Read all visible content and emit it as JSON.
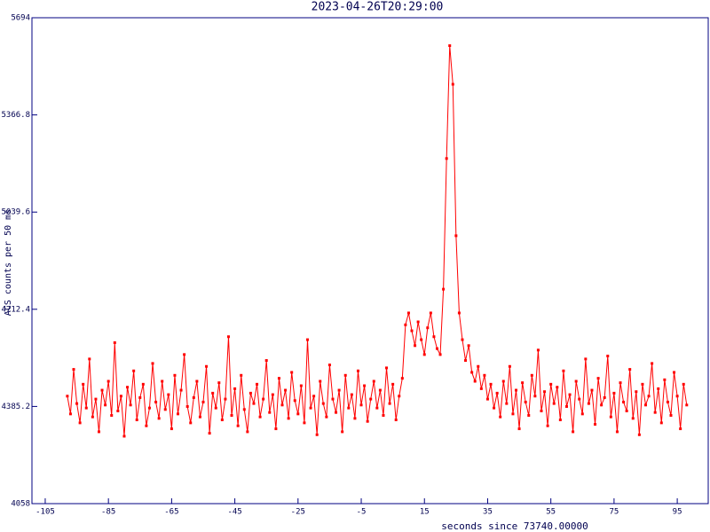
{
  "chart_data": {
    "type": "line",
    "title": "2023-04-26T20:29:00",
    "xlabel": "seconds since 73740.00000",
    "ylabel": "ACS counts per 50 ms",
    "x": [
      -98,
      -97,
      -96,
      -95,
      -94,
      -93,
      -92,
      -91,
      -90,
      -89,
      -88,
      -87,
      -86,
      -85,
      -84,
      -83,
      -82,
      -81,
      -80,
      -79,
      -78,
      -77,
      -76,
      -75,
      -74,
      -73,
      -72,
      -71,
      -70,
      -69,
      -68,
      -67,
      -66,
      -65,
      -64,
      -63,
      -62,
      -61,
      -60,
      -59,
      -58,
      -57,
      -56,
      -55,
      -54,
      -53,
      -52,
      -51,
      -50,
      -49,
      -48,
      -47,
      -46,
      -45,
      -44,
      -43,
      -42,
      -41,
      -40,
      -39,
      -38,
      -37,
      -36,
      -35,
      -34,
      -33,
      -32,
      -31,
      -30,
      -29,
      -28,
      -27,
      -26,
      -25,
      -24,
      -23,
      -22,
      -21,
      -20,
      -19,
      -18,
      -17,
      -16,
      -15,
      -14,
      -13,
      -12,
      -11,
      -10,
      -9,
      -8,
      -7,
      -6,
      -5,
      -4,
      -3,
      -2,
      -1,
      0,
      1,
      2,
      3,
      4,
      5,
      6,
      7,
      8,
      9,
      10,
      11,
      12,
      13,
      14,
      15,
      16,
      17,
      18,
      19,
      20,
      21,
      22,
      23,
      24,
      25,
      26,
      27,
      28,
      29,
      30,
      31,
      32,
      33,
      34,
      35,
      36,
      37,
      38,
      39,
      40,
      41,
      42,
      43,
      44,
      45,
      46,
      47,
      48,
      49,
      50,
      51,
      52,
      53,
      54,
      55,
      56,
      57,
      58,
      59,
      60,
      61,
      62,
      63,
      64,
      65,
      66,
      67,
      68,
      69,
      70,
      71,
      72,
      73,
      74,
      75,
      76,
      77,
      78,
      79,
      80,
      81,
      82,
      83,
      84,
      85,
      86,
      87,
      88,
      89,
      90,
      91,
      92,
      93,
      94,
      95,
      96,
      97,
      98
    ],
    "series": [
      {
        "color": "#ff0000",
        "values": [
          4420,
          4360,
          4510,
          4395,
          4330,
          4460,
          4380,
          4545,
          4350,
          4410,
          4300,
          4440,
          4390,
          4470,
          4355,
          4600,
          4370,
          4420,
          4285,
          4450,
          4390,
          4505,
          4340,
          4415,
          4460,
          4320,
          4380,
          4530,
          4400,
          4345,
          4470,
          4375,
          4425,
          4310,
          4490,
          4360,
          4440,
          4560,
          4385,
          4330,
          4415,
          4470,
          4350,
          4400,
          4520,
          4295,
          4430,
          4380,
          4465,
          4340,
          4410,
          4620,
          4355,
          4445,
          4320,
          4490,
          4375,
          4300,
          4430,
          4395,
          4460,
          4350,
          4410,
          4540,
          4365,
          4425,
          4310,
          4480,
          4390,
          4440,
          4345,
          4500,
          4405,
          4360,
          4455,
          4330,
          4610,
          4380,
          4420,
          4290,
          4470,
          4395,
          4350,
          4525,
          4410,
          4365,
          4440,
          4300,
          4490,
          4380,
          4425,
          4345,
          4505,
          4390,
          4455,
          4335,
          4410,
          4470,
          4380,
          4440,
          4355,
          4515,
          4395,
          4460,
          4340,
          4420,
          4480,
          4660,
          4700,
          4640,
          4590,
          4670,
          4610,
          4560,
          4650,
          4700,
          4620,
          4580,
          4560,
          4780,
          5220,
          5600,
          5470,
          4960,
          4700,
          4610,
          4540,
          4590,
          4500,
          4470,
          4520,
          4445,
          4490,
          4410,
          4460,
          4380,
          4430,
          4350,
          4470,
          4395,
          4520,
          4360,
          4440,
          4310,
          4465,
          4400,
          4355,
          4490,
          4420,
          4575,
          4370,
          4435,
          4320,
          4460,
          4395,
          4450,
          4340,
          4505,
          4385,
          4425,
          4300,
          4470,
          4410,
          4360,
          4545,
          4395,
          4440,
          4325,
          4480,
          4390,
          4415,
          4555,
          4350,
          4430,
          4300,
          4465,
          4400,
          4370,
          4510,
          4345,
          4435,
          4290,
          4460,
          4390,
          4420,
          4530,
          4365,
          4445,
          4330,
          4475,
          4400,
          4355,
          4500,
          4420,
          4310,
          4460,
          4390
        ]
      }
    ],
    "xlim": [
      -109.2,
      104.8
    ],
    "ylim": [
      4058,
      5694
    ],
    "xticks": [
      -105,
      -85,
      -65,
      -45,
      -25,
      -5,
      15,
      35,
      55,
      75,
      95
    ],
    "yticks": [
      4058,
      4385.2,
      4712.4,
      5039.6,
      5366.8,
      5694
    ]
  }
}
